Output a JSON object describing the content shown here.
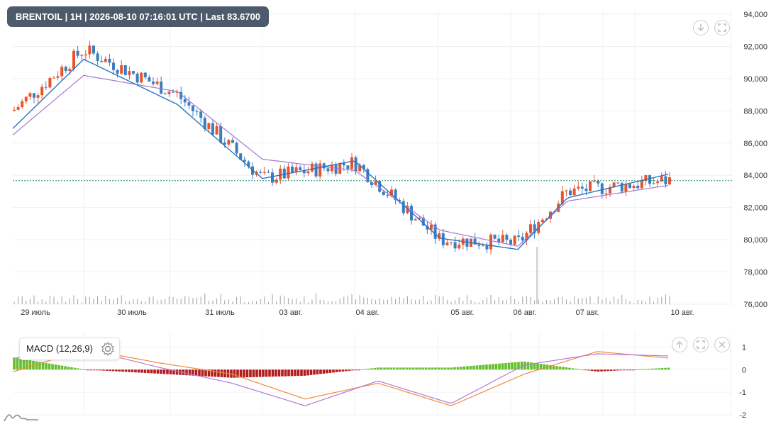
{
  "header": {
    "text": "BRENTOIL | 1H | 2026-08-10 07:16:01 UTC | Last 83.6700"
  },
  "macd_panel": {
    "label": "MACD (12,26,9)"
  },
  "colors": {
    "up": "#e8542b",
    "down": "#3b7dbf",
    "ma_fast": "#2a73c5",
    "ma_slow": "#a679d3",
    "macd_line": "#b678d6",
    "signal_line": "#f08c3a",
    "hist_pos": "#62c02b",
    "hist_neg": "#b21c1c",
    "last_line": "#1f8a70"
  },
  "chart_data": [
    {
      "type": "candlestick",
      "symbol": "BRENTOIL",
      "interval": "1H",
      "last": 83.67,
      "y_ticks": [
        "94,000",
        "92,000",
        "90,000",
        "88,000",
        "86,000",
        "84,000",
        "82,000",
        "80,000",
        "78,000",
        "76,000"
      ],
      "ylim": [
        76,
        94
      ],
      "x_ticks": [
        "29 июль",
        "30 июль",
        "31 июль",
        "03 авг.",
        "04 авг.",
        "05 авг.",
        "06 авг.",
        "07 авг.",
        "10 авг."
      ],
      "session_closes": [
        88.0,
        91.8,
        89.0,
        83.8,
        84.8,
        80.0,
        79.8,
        83.0,
        83.7
      ],
      "ma_fast_closes": [
        86.9,
        91.2,
        88.4,
        83.8,
        84.9,
        80.1,
        79.4,
        82.6,
        84.1
      ],
      "ma_slow_closes": [
        86.5,
        90.2,
        89.2,
        85.0,
        84.3,
        80.6,
        79.6,
        82.4,
        83.4
      ],
      "grid": true
    },
    {
      "type": "macd",
      "name": "MACD (12,26,9)",
      "y_ticks": [
        "1",
        "0",
        "-1",
        "-2"
      ],
      "ylim": [
        -2,
        1.2
      ],
      "macd_points": [
        0.5,
        0.9,
        0.1,
        -0.6,
        -1.6,
        -0.5,
        -1.5,
        0.2,
        0.7,
        0.6
      ],
      "signal_points": [
        -0.1,
        0.9,
        0.3,
        -0.2,
        -1.3,
        -0.6,
        -1.6,
        -0.2,
        0.8,
        0.5
      ]
    }
  ]
}
